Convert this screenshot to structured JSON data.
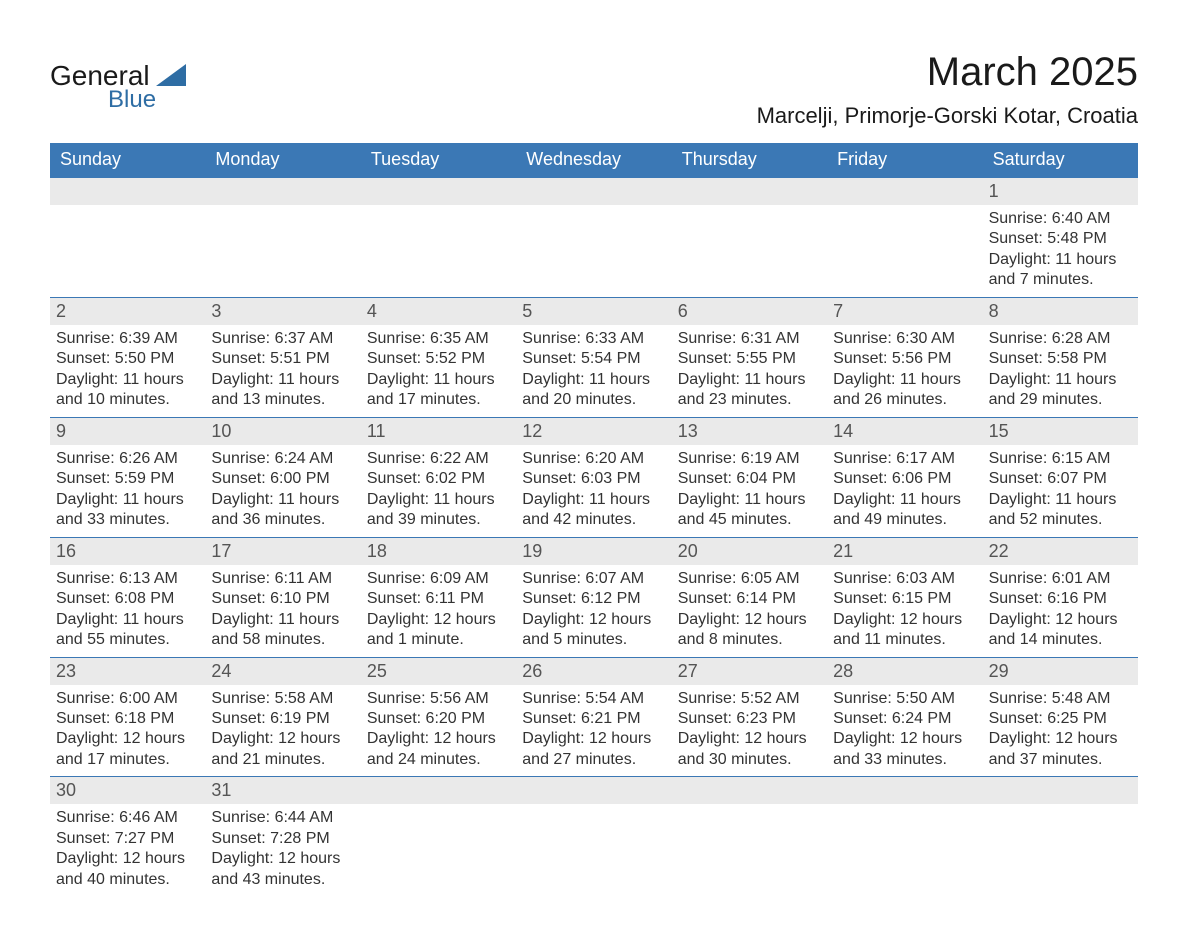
{
  "logo": {
    "text1": "General",
    "text2": "Blue"
  },
  "title": "March 2025",
  "subtitle": "Marcelji, Primorje-Gorski Kotar, Croatia",
  "colors": {
    "header_bg": "#3b78b5",
    "header_text": "#ffffff",
    "daynum_bg": "#eaeaea",
    "daynum_text": "#555555",
    "body_text": "#333333",
    "separator": "#3b78b5",
    "logo_blue": "#2e6da4",
    "page_bg": "#ffffff"
  },
  "typography": {
    "title_fontsize": 40,
    "subtitle_fontsize": 22,
    "dayheader_fontsize": 18,
    "daynum_fontsize": 18,
    "body_fontsize": 16,
    "font_family": "Arial"
  },
  "day_headers": [
    "Sunday",
    "Monday",
    "Tuesday",
    "Wednesday",
    "Thursday",
    "Friday",
    "Saturday"
  ],
  "weeks": [
    {
      "nums": [
        "",
        "",
        "",
        "",
        "",
        "",
        "1"
      ],
      "cells": [
        {
          "empty": true
        },
        {
          "empty": true
        },
        {
          "empty": true
        },
        {
          "empty": true
        },
        {
          "empty": true
        },
        {
          "empty": true
        },
        {
          "sunrise": "Sunrise: 6:40 AM",
          "sunset": "Sunset: 5:48 PM",
          "day1": "Daylight: 11 hours",
          "day2": "and 7 minutes."
        }
      ]
    },
    {
      "nums": [
        "2",
        "3",
        "4",
        "5",
        "6",
        "7",
        "8"
      ],
      "cells": [
        {
          "sunrise": "Sunrise: 6:39 AM",
          "sunset": "Sunset: 5:50 PM",
          "day1": "Daylight: 11 hours",
          "day2": "and 10 minutes."
        },
        {
          "sunrise": "Sunrise: 6:37 AM",
          "sunset": "Sunset: 5:51 PM",
          "day1": "Daylight: 11 hours",
          "day2": "and 13 minutes."
        },
        {
          "sunrise": "Sunrise: 6:35 AM",
          "sunset": "Sunset: 5:52 PM",
          "day1": "Daylight: 11 hours",
          "day2": "and 17 minutes."
        },
        {
          "sunrise": "Sunrise: 6:33 AM",
          "sunset": "Sunset: 5:54 PM",
          "day1": "Daylight: 11 hours",
          "day2": "and 20 minutes."
        },
        {
          "sunrise": "Sunrise: 6:31 AM",
          "sunset": "Sunset: 5:55 PM",
          "day1": "Daylight: 11 hours",
          "day2": "and 23 minutes."
        },
        {
          "sunrise": "Sunrise: 6:30 AM",
          "sunset": "Sunset: 5:56 PM",
          "day1": "Daylight: 11 hours",
          "day2": "and 26 minutes."
        },
        {
          "sunrise": "Sunrise: 6:28 AM",
          "sunset": "Sunset: 5:58 PM",
          "day1": "Daylight: 11 hours",
          "day2": "and 29 minutes."
        }
      ]
    },
    {
      "nums": [
        "9",
        "10",
        "11",
        "12",
        "13",
        "14",
        "15"
      ],
      "cells": [
        {
          "sunrise": "Sunrise: 6:26 AM",
          "sunset": "Sunset: 5:59 PM",
          "day1": "Daylight: 11 hours",
          "day2": "and 33 minutes."
        },
        {
          "sunrise": "Sunrise: 6:24 AM",
          "sunset": "Sunset: 6:00 PM",
          "day1": "Daylight: 11 hours",
          "day2": "and 36 minutes."
        },
        {
          "sunrise": "Sunrise: 6:22 AM",
          "sunset": "Sunset: 6:02 PM",
          "day1": "Daylight: 11 hours",
          "day2": "and 39 minutes."
        },
        {
          "sunrise": "Sunrise: 6:20 AM",
          "sunset": "Sunset: 6:03 PM",
          "day1": "Daylight: 11 hours",
          "day2": "and 42 minutes."
        },
        {
          "sunrise": "Sunrise: 6:19 AM",
          "sunset": "Sunset: 6:04 PM",
          "day1": "Daylight: 11 hours",
          "day2": "and 45 minutes."
        },
        {
          "sunrise": "Sunrise: 6:17 AM",
          "sunset": "Sunset: 6:06 PM",
          "day1": "Daylight: 11 hours",
          "day2": "and 49 minutes."
        },
        {
          "sunrise": "Sunrise: 6:15 AM",
          "sunset": "Sunset: 6:07 PM",
          "day1": "Daylight: 11 hours",
          "day2": "and 52 minutes."
        }
      ]
    },
    {
      "nums": [
        "16",
        "17",
        "18",
        "19",
        "20",
        "21",
        "22"
      ],
      "cells": [
        {
          "sunrise": "Sunrise: 6:13 AM",
          "sunset": "Sunset: 6:08 PM",
          "day1": "Daylight: 11 hours",
          "day2": "and 55 minutes."
        },
        {
          "sunrise": "Sunrise: 6:11 AM",
          "sunset": "Sunset: 6:10 PM",
          "day1": "Daylight: 11 hours",
          "day2": "and 58 minutes."
        },
        {
          "sunrise": "Sunrise: 6:09 AM",
          "sunset": "Sunset: 6:11 PM",
          "day1": "Daylight: 12 hours",
          "day2": "and 1 minute."
        },
        {
          "sunrise": "Sunrise: 6:07 AM",
          "sunset": "Sunset: 6:12 PM",
          "day1": "Daylight: 12 hours",
          "day2": "and 5 minutes."
        },
        {
          "sunrise": "Sunrise: 6:05 AM",
          "sunset": "Sunset: 6:14 PM",
          "day1": "Daylight: 12 hours",
          "day2": "and 8 minutes."
        },
        {
          "sunrise": "Sunrise: 6:03 AM",
          "sunset": "Sunset: 6:15 PM",
          "day1": "Daylight: 12 hours",
          "day2": "and 11 minutes."
        },
        {
          "sunrise": "Sunrise: 6:01 AM",
          "sunset": "Sunset: 6:16 PM",
          "day1": "Daylight: 12 hours",
          "day2": "and 14 minutes."
        }
      ]
    },
    {
      "nums": [
        "23",
        "24",
        "25",
        "26",
        "27",
        "28",
        "29"
      ],
      "cells": [
        {
          "sunrise": "Sunrise: 6:00 AM",
          "sunset": "Sunset: 6:18 PM",
          "day1": "Daylight: 12 hours",
          "day2": "and 17 minutes."
        },
        {
          "sunrise": "Sunrise: 5:58 AM",
          "sunset": "Sunset: 6:19 PM",
          "day1": "Daylight: 12 hours",
          "day2": "and 21 minutes."
        },
        {
          "sunrise": "Sunrise: 5:56 AM",
          "sunset": "Sunset: 6:20 PM",
          "day1": "Daylight: 12 hours",
          "day2": "and 24 minutes."
        },
        {
          "sunrise": "Sunrise: 5:54 AM",
          "sunset": "Sunset: 6:21 PM",
          "day1": "Daylight: 12 hours",
          "day2": "and 27 minutes."
        },
        {
          "sunrise": "Sunrise: 5:52 AM",
          "sunset": "Sunset: 6:23 PM",
          "day1": "Daylight: 12 hours",
          "day2": "and 30 minutes."
        },
        {
          "sunrise": "Sunrise: 5:50 AM",
          "sunset": "Sunset: 6:24 PM",
          "day1": "Daylight: 12 hours",
          "day2": "and 33 minutes."
        },
        {
          "sunrise": "Sunrise: 5:48 AM",
          "sunset": "Sunset: 6:25 PM",
          "day1": "Daylight: 12 hours",
          "day2": "and 37 minutes."
        }
      ]
    },
    {
      "nums": [
        "30",
        "31",
        "",
        "",
        "",
        "",
        ""
      ],
      "cells": [
        {
          "sunrise": "Sunrise: 6:46 AM",
          "sunset": "Sunset: 7:27 PM",
          "day1": "Daylight: 12 hours",
          "day2": "and 40 minutes."
        },
        {
          "sunrise": "Sunrise: 6:44 AM",
          "sunset": "Sunset: 7:28 PM",
          "day1": "Daylight: 12 hours",
          "day2": "and 43 minutes."
        },
        {
          "empty": true
        },
        {
          "empty": true
        },
        {
          "empty": true
        },
        {
          "empty": true
        },
        {
          "empty": true
        }
      ]
    }
  ]
}
